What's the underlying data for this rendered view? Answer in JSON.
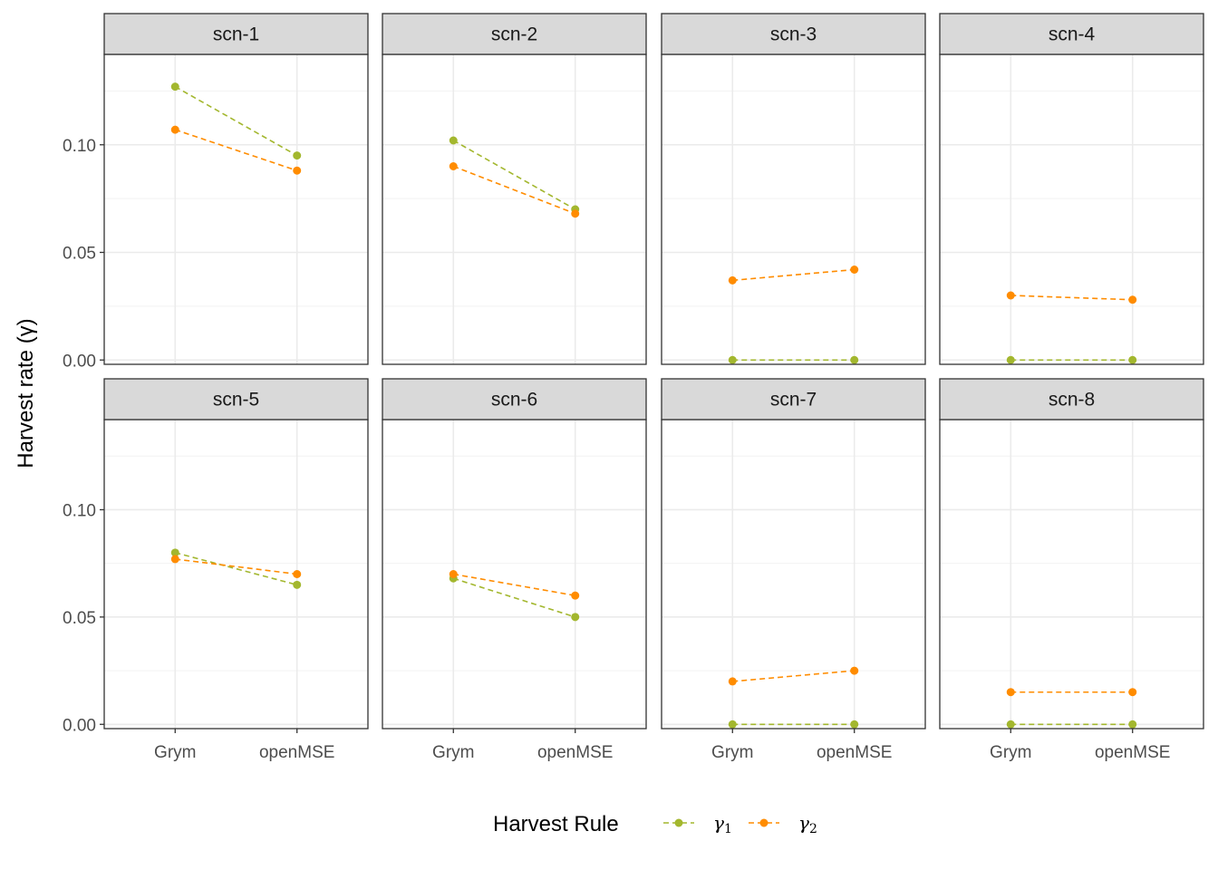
{
  "chart_data": {
    "type": "line",
    "facet_layout": "2 rows x 4 columns",
    "categories": [
      "Grym",
      "openMSE"
    ],
    "ylabel": "Harvest rate (γ)",
    "ylim": [
      -0.002,
      0.142
    ],
    "yticks": [
      0.0,
      0.05,
      0.1
    ],
    "ytick_labels": [
      "0.00",
      "0.05",
      "0.10"
    ],
    "grid": true,
    "legend": {
      "title": "Harvest Rule",
      "placement": "bottom",
      "entries": [
        {
          "name": "γ",
          "subscript": "1",
          "color": "#A3B72E"
        },
        {
          "name": "γ",
          "subscript": "2",
          "color": "#FF8C00"
        }
      ]
    },
    "series_colors": [
      "#A3B72E",
      "#FF8C00"
    ],
    "line_style": "dashed",
    "panels": [
      {
        "title": "scn-1",
        "series": [
          {
            "name": "γ1",
            "values": [
              0.127,
              0.095
            ]
          },
          {
            "name": "γ2",
            "values": [
              0.107,
              0.088
            ]
          }
        ]
      },
      {
        "title": "scn-2",
        "series": [
          {
            "name": "γ1",
            "values": [
              0.102,
              0.07
            ]
          },
          {
            "name": "γ2",
            "values": [
              0.09,
              0.068
            ]
          }
        ]
      },
      {
        "title": "scn-3",
        "series": [
          {
            "name": "γ1",
            "values": [
              0.0,
              0.0
            ]
          },
          {
            "name": "γ2",
            "values": [
              0.037,
              0.042
            ]
          }
        ]
      },
      {
        "title": "scn-4",
        "series": [
          {
            "name": "γ1",
            "values": [
              0.0,
              0.0
            ]
          },
          {
            "name": "γ2",
            "values": [
              0.03,
              0.028
            ]
          }
        ]
      },
      {
        "title": "scn-5",
        "series": [
          {
            "name": "γ1",
            "values": [
              0.08,
              0.065
            ]
          },
          {
            "name": "γ2",
            "values": [
              0.077,
              0.07
            ]
          }
        ]
      },
      {
        "title": "scn-6",
        "series": [
          {
            "name": "γ1",
            "values": [
              0.068,
              0.05
            ]
          },
          {
            "name": "γ2",
            "values": [
              0.07,
              0.06
            ]
          }
        ]
      },
      {
        "title": "scn-7",
        "series": [
          {
            "name": "γ1",
            "values": [
              0.0,
              0.0
            ]
          },
          {
            "name": "γ2",
            "values": [
              0.02,
              0.025
            ]
          }
        ]
      },
      {
        "title": "scn-8",
        "series": [
          {
            "name": "γ1",
            "values": [
              0.0,
              0.0
            ]
          },
          {
            "name": "γ2",
            "values": [
              0.015,
              0.015
            ]
          }
        ]
      }
    ]
  }
}
